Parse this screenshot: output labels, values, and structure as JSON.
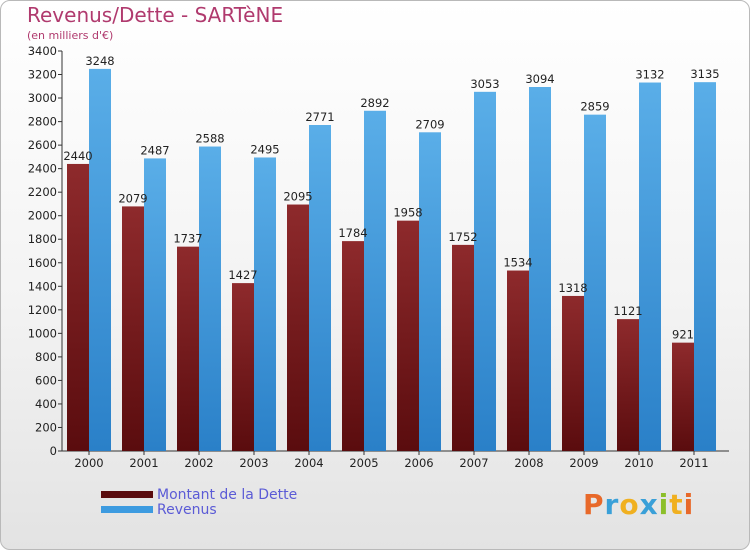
{
  "title": "Revenus/Dette - SARTèNE",
  "subtitle": "(en milliers d'€)",
  "chart_data": {
    "type": "bar",
    "categories": [
      "2000",
      "2001",
      "2002",
      "2003",
      "2004",
      "2005",
      "2006",
      "2007",
      "2008",
      "2009",
      "2010",
      "2011"
    ],
    "series": [
      {
        "name": "Montant de la Dette",
        "color": "#7a1518",
        "values": [
          2440,
          2079,
          1737,
          1427,
          2095,
          1784,
          1958,
          1752,
          1534,
          1318,
          1121,
          921
        ]
      },
      {
        "name": "Revenus",
        "color": "#3d9be0",
        "values": [
          3248,
          2487,
          2588,
          2495,
          2771,
          2892,
          2709,
          3053,
          3094,
          2859,
          3132,
          3135
        ]
      }
    ],
    "xlabel": "",
    "ylabel": "",
    "ylim": [
      0,
      3400
    ],
    "yticks": [
      0,
      200,
      400,
      600,
      800,
      1000,
      1200,
      1400,
      1600,
      1800,
      2000,
      2200,
      2400,
      2600,
      2800,
      3000,
      3200,
      3400
    ],
    "grid": false,
    "legend_position": "bottom-left"
  },
  "logo": {
    "letters": [
      "P",
      "r",
      "o",
      "x",
      "i",
      "t",
      "i"
    ],
    "colors": [
      "#e8692a",
      "#3aa0d8",
      "#f0b020",
      "#3aa0d8",
      "#8cbf2a",
      "#f0b020",
      "#e8692a"
    ]
  }
}
